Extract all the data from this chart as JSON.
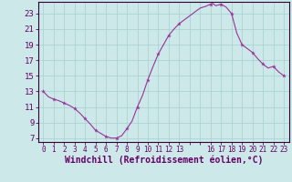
{
  "xlabel": "Windchill (Refroidissement éolien,°C)",
  "background_color": "#cce8e8",
  "line_color": "#993399",
  "marker_color": "#993399",
  "grid_color": "#aad4d4",
  "axis_color": "#330033",
  "tick_label_color": "#660066",
  "xlim": [
    -0.5,
    23.5
  ],
  "ylim": [
    6.5,
    24.5
  ],
  "yticks": [
    7,
    9,
    11,
    13,
    15,
    17,
    19,
    21,
    23
  ],
  "xtick_positions": [
    0,
    1,
    2,
    3,
    4,
    5,
    6,
    7,
    8,
    9,
    10,
    11,
    12,
    13,
    14,
    15,
    16,
    17,
    18,
    19,
    20,
    21,
    22,
    23
  ],
  "xtick_labels": [
    "0",
    "1",
    "2",
    "3",
    "4",
    "5",
    "6",
    "7",
    "8",
    "9",
    "10",
    "11",
    "12",
    "13",
    "",
    "",
    "16",
    "17",
    "18",
    "19",
    "20",
    "21",
    "22",
    "23"
  ],
  "x": [
    0,
    0.5,
    1,
    1.5,
    2,
    2.5,
    3,
    3.5,
    4,
    4.5,
    5,
    5.5,
    6,
    6.5,
    7,
    7.5,
    8,
    8.5,
    9,
    9.5,
    10,
    10.5,
    11,
    11.5,
    12,
    12.5,
    13,
    13.5,
    14,
    14.5,
    15,
    15.5,
    16,
    16.2,
    16.5,
    17,
    17.5,
    18,
    18.5,
    19,
    19.5,
    20,
    20.5,
    21,
    21.5,
    22,
    22.5,
    23
  ],
  "y": [
    13.0,
    12.3,
    12.0,
    11.8,
    11.5,
    11.2,
    10.8,
    10.2,
    9.5,
    8.8,
    8.0,
    7.6,
    7.2,
    7.0,
    7.0,
    7.3,
    8.2,
    9.2,
    11.0,
    12.5,
    14.5,
    16.2,
    17.8,
    19.0,
    20.2,
    21.0,
    21.7,
    22.2,
    22.7,
    23.2,
    23.7,
    23.9,
    24.2,
    24.3,
    24.0,
    24.2,
    23.8,
    23.0,
    20.5,
    19.0,
    18.5,
    18.0,
    17.2,
    16.5,
    16.0,
    16.2,
    15.5,
    15.0
  ],
  "marker_positions": [
    0,
    1,
    2,
    3,
    4,
    5,
    6,
    7,
    8,
    9,
    10,
    11,
    12,
    13,
    16,
    17,
    18,
    19,
    20,
    21,
    22,
    23
  ]
}
